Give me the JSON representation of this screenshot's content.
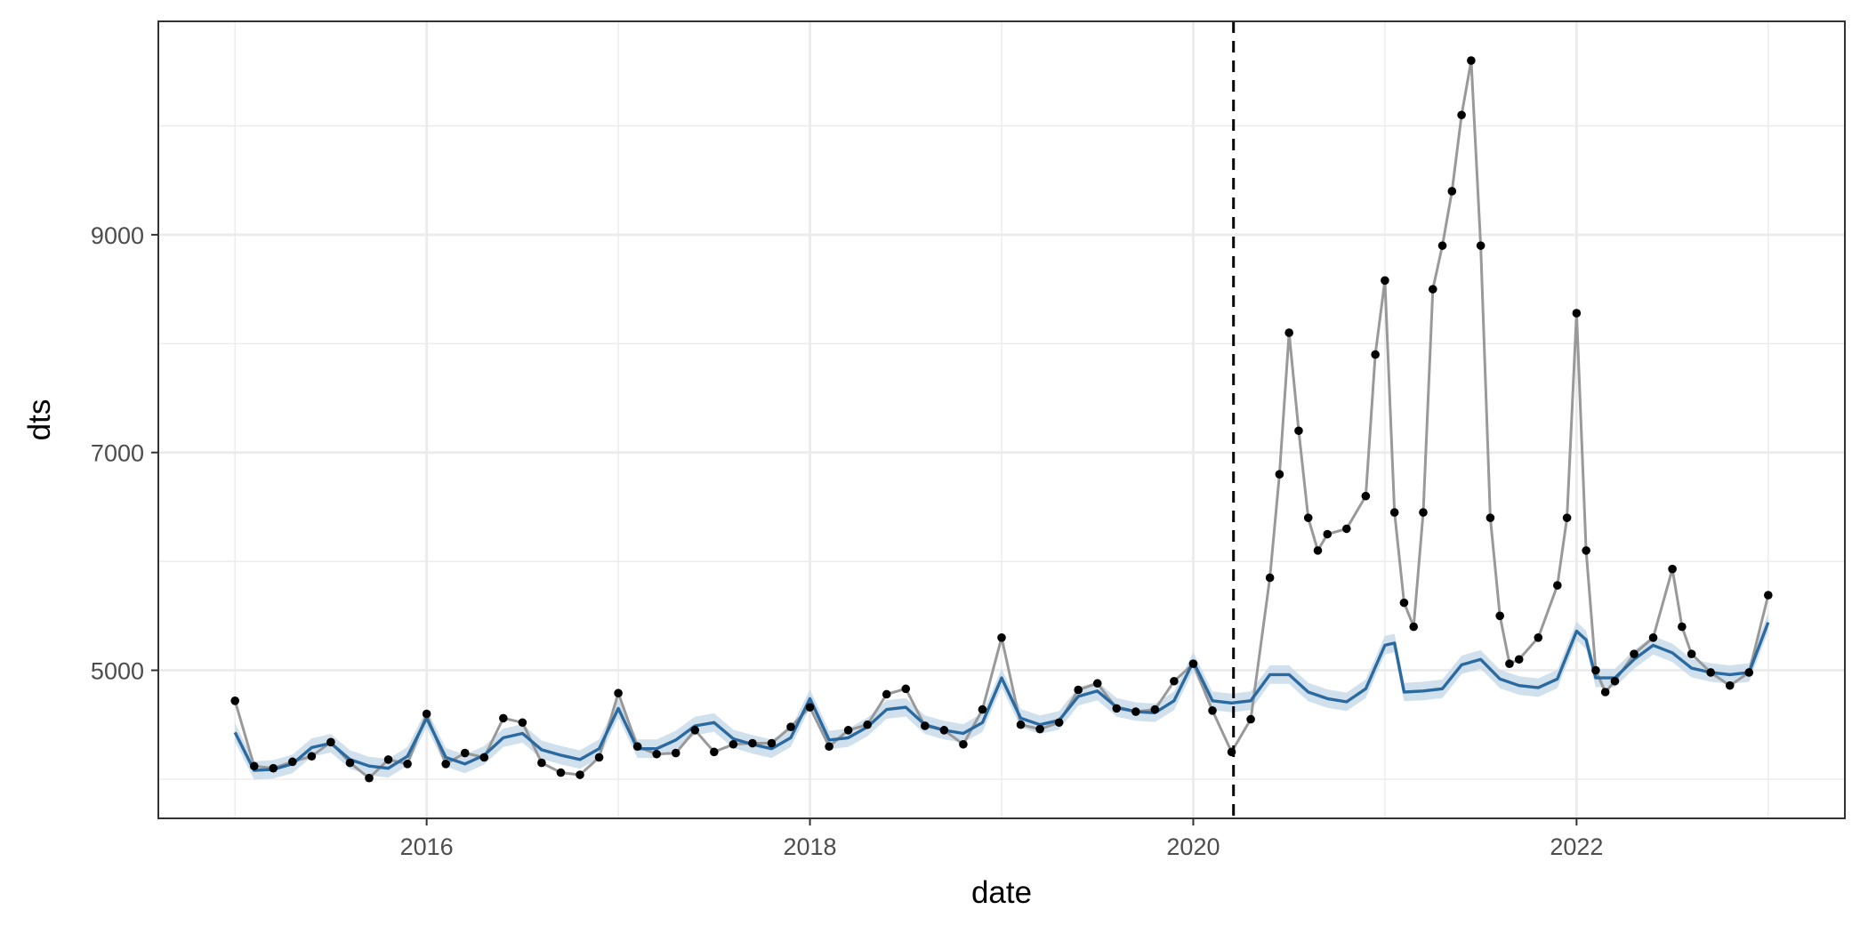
{
  "colors": {
    "background": "#ffffff",
    "grid": "#ebebeb",
    "panel_border": "#333333",
    "observed_line": "#999999",
    "observed_point": "#000000",
    "fit_line": "#2b6aa0",
    "fit_ribbon": "#c5d8e8",
    "vline": "#000000"
  },
  "chart_data": {
    "type": "line",
    "xlabel": "date",
    "ylabel": "dts",
    "x_ticks": [
      2016,
      2018,
      2020,
      2022
    ],
    "x_tick_labels": [
      "2016",
      "2018",
      "2020",
      "2022"
    ],
    "y_ticks": [
      5000,
      7000,
      9000
    ],
    "y_tick_labels": [
      "5000",
      "7000",
      "9000"
    ],
    "xlim": [
      2014.6,
      2023.4
    ],
    "ylim": [
      3640,
      10960
    ],
    "grid": true,
    "vline": {
      "x": 2020.21,
      "style": "dashed"
    },
    "series": [
      {
        "role": "observed",
        "x": [
          2015.0,
          2015.1,
          2015.2,
          2015.3,
          2015.4,
          2015.5,
          2015.6,
          2015.7,
          2015.8,
          2015.9,
          2016.0,
          2016.1,
          2016.2,
          2016.3,
          2016.4,
          2016.5,
          2016.6,
          2016.7,
          2016.8,
          2016.9,
          2017.0,
          2017.1,
          2017.2,
          2017.3,
          2017.4,
          2017.5,
          2017.6,
          2017.7,
          2017.8,
          2017.9,
          2018.0,
          2018.1,
          2018.2,
          2018.3,
          2018.4,
          2018.5,
          2018.6,
          2018.7,
          2018.8,
          2018.9,
          2019.0,
          2019.1,
          2019.2,
          2019.3,
          2019.4,
          2019.5,
          2019.6,
          2019.7,
          2019.8,
          2019.9,
          2020.0,
          2020.1,
          2020.2,
          2020.3,
          2020.4,
          2020.45,
          2020.5,
          2020.55,
          2020.6,
          2020.65,
          2020.7,
          2020.8,
          2020.9,
          2020.95,
          2021.0,
          2021.05,
          2021.1,
          2021.15,
          2021.2,
          2021.25,
          2021.3,
          2021.35,
          2021.4,
          2021.45,
          2021.5,
          2021.55,
          2021.6,
          2021.65,
          2021.7,
          2021.8,
          2021.9,
          2021.95,
          2022.0,
          2022.05,
          2022.1,
          2022.15,
          2022.2,
          2022.3,
          2022.4,
          2022.5,
          2022.55,
          2022.6,
          2022.7,
          2022.8,
          2022.9,
          2023.0
        ],
        "y": [
          4720,
          4120,
          4100,
          4160,
          4210,
          4340,
          4150,
          4010,
          4180,
          4140,
          4600,
          4140,
          4240,
          4200,
          4560,
          4520,
          4150,
          4060,
          4040,
          4200,
          4790,
          4300,
          4230,
          4240,
          4450,
          4250,
          4320,
          4330,
          4330,
          4480,
          4660,
          4300,
          4450,
          4500,
          4780,
          4830,
          4490,
          4450,
          4320,
          4640,
          5300,
          4500,
          4460,
          4520,
          4820,
          4880,
          4650,
          4620,
          4640,
          4900,
          5060,
          4630,
          4250,
          4550,
          5850,
          6800,
          8100,
          7200,
          6400,
          6100,
          6250,
          6300,
          6600,
          7900,
          8580,
          6450,
          5620,
          5400,
          6450,
          8500,
          8900,
          9400,
          10100,
          10600,
          8900,
          6400,
          5500,
          5060,
          5100,
          5300,
          5780,
          6400,
          8280,
          6100,
          5000,
          4800,
          4900,
          5150,
          5300,
          5930,
          5400,
          5150,
          4980,
          4860,
          4980,
          5690
        ]
      },
      {
        "role": "fitted",
        "x": [
          2015.0,
          2015.1,
          2015.2,
          2015.3,
          2015.4,
          2015.5,
          2015.6,
          2015.7,
          2015.8,
          2015.9,
          2016.0,
          2016.1,
          2016.2,
          2016.3,
          2016.4,
          2016.5,
          2016.6,
          2016.7,
          2016.8,
          2016.9,
          2017.0,
          2017.1,
          2017.2,
          2017.3,
          2017.4,
          2017.5,
          2017.6,
          2017.7,
          2017.8,
          2017.9,
          2018.0,
          2018.1,
          2018.2,
          2018.3,
          2018.4,
          2018.5,
          2018.6,
          2018.7,
          2018.8,
          2018.9,
          2019.0,
          2019.1,
          2019.2,
          2019.3,
          2019.4,
          2019.5,
          2019.6,
          2019.7,
          2019.8,
          2019.9,
          2020.0,
          2020.1,
          2020.2,
          2020.3,
          2020.4,
          2020.5,
          2020.6,
          2020.7,
          2020.8,
          2020.9,
          2021.0,
          2021.05,
          2021.1,
          2021.2,
          2021.3,
          2021.4,
          2021.5,
          2021.6,
          2021.7,
          2021.8,
          2021.9,
          2022.0,
          2022.05,
          2022.1,
          2022.2,
          2022.3,
          2022.4,
          2022.5,
          2022.6,
          2022.7,
          2022.8,
          2022.9,
          2023.0
        ],
        "y": [
          4430,
          4080,
          4090,
          4140,
          4290,
          4330,
          4180,
          4120,
          4100,
          4210,
          4560,
          4200,
          4140,
          4220,
          4380,
          4420,
          4270,
          4220,
          4180,
          4280,
          4650,
          4280,
          4280,
          4360,
          4490,
          4520,
          4370,
          4320,
          4280,
          4380,
          4740,
          4360,
          4380,
          4480,
          4640,
          4660,
          4500,
          4450,
          4420,
          4520,
          4930,
          4560,
          4500,
          4540,
          4760,
          4810,
          4660,
          4620,
          4610,
          4720,
          5080,
          4720,
          4700,
          4720,
          4960,
          4960,
          4800,
          4740,
          4710,
          4830,
          5230,
          5250,
          4800,
          4810,
          4830,
          5050,
          5100,
          4920,
          4860,
          4840,
          4920,
          5360,
          5280,
          4930,
          4930,
          5100,
          5230,
          5160,
          5020,
          4980,
          4960,
          4980,
          5440
        ]
      }
    ]
  }
}
